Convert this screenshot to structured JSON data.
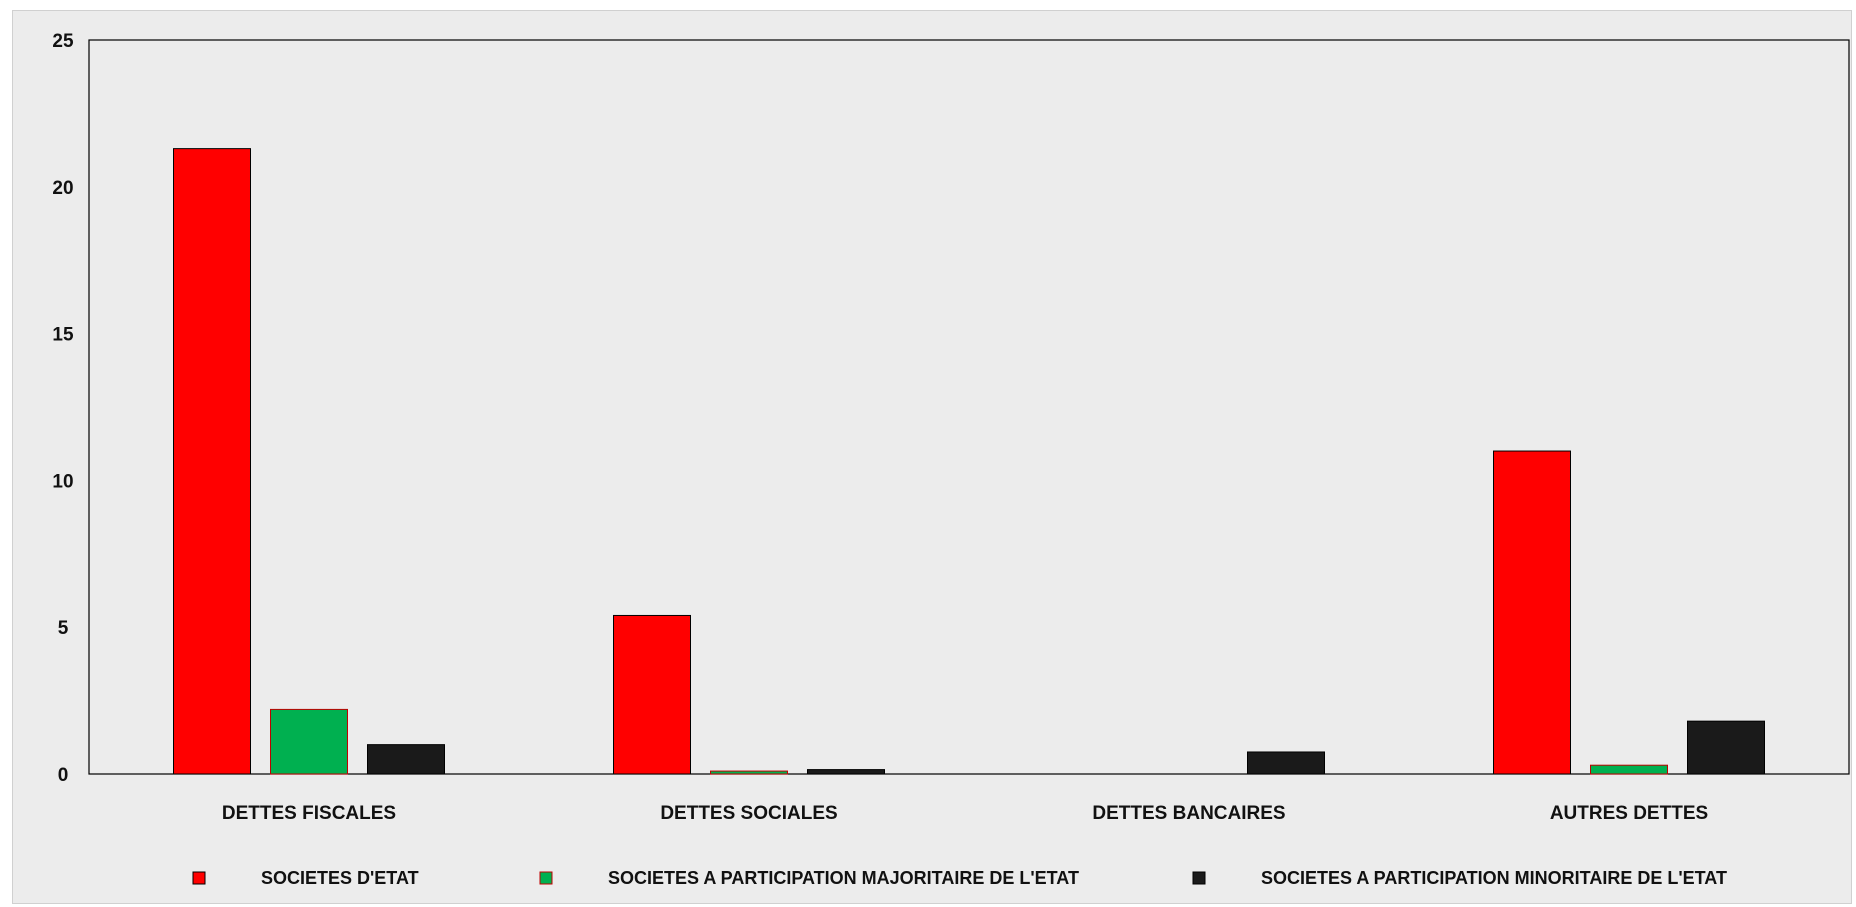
{
  "chart_data": {
    "type": "bar",
    "categories": [
      "DETTES FISCALES",
      "DETTES SOCIALES",
      "DETTES BANCAIRES",
      "AUTRES DETTES"
    ],
    "series": [
      {
        "name": "SOCIETES D'ETAT",
        "values": [
          21.3,
          5.4,
          0,
          11.0
        ],
        "color": "#ff0000"
      },
      {
        "name": "SOCIETES A PARTICIPATION MAJORITAIRE DE L'ETAT",
        "values": [
          2.2,
          0.1,
          0,
          0.3
        ],
        "color": "#00b050"
      },
      {
        "name": "SOCIETES A PARTICIPATION MINORITAIRE DE L'ETAT",
        "values": [
          1.0,
          0.15,
          0.75,
          1.8
        ],
        "color": "#1a1a1a"
      }
    ],
    "yticks": [
      0,
      5,
      10,
      15,
      20,
      25
    ],
    "ylim": [
      0,
      25
    ],
    "title": "",
    "xlabel": "",
    "ylabel": "",
    "grid": false,
    "legend_position": "bottom"
  }
}
